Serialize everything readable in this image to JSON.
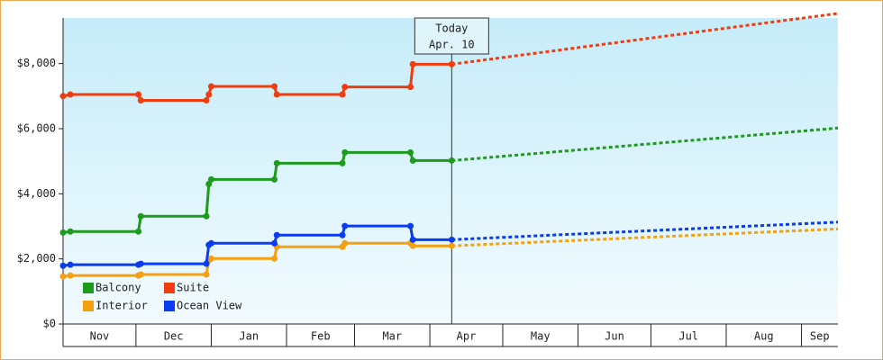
{
  "chart_data": {
    "type": "line",
    "annotation": {
      "x": 160,
      "lines": [
        "Today",
        "Apr. 10"
      ]
    },
    "x": [
      0,
      3,
      31,
      32,
      59,
      60,
      61,
      87,
      88,
      115,
      116,
      143,
      144,
      160
    ],
    "forecast_x": [
      160,
      319
    ],
    "series": [
      {
        "name": "Balcony",
        "color": "#1e9b1e",
        "values": [
          2810,
          2840,
          2840,
          3310,
          3310,
          4300,
          4440,
          4440,
          4940,
          4940,
          5270,
          5270,
          5020,
          5020
        ],
        "forecast": [
          5020,
          6020
        ]
      },
      {
        "name": "Suite",
        "color": "#f03c0f",
        "values": [
          7000,
          7050,
          7050,
          6870,
          6870,
          7050,
          7300,
          7300,
          7050,
          7050,
          7280,
          7280,
          7980,
          7980
        ],
        "forecast": [
          7980,
          9540
        ]
      },
      {
        "name": "Interior",
        "color": "#f5a00f",
        "values": [
          1460,
          1490,
          1490,
          1520,
          1520,
          1960,
          2010,
          2010,
          2370,
          2370,
          2480,
          2480,
          2400,
          2400
        ],
        "forecast": [
          2400,
          2920
        ]
      },
      {
        "name": "Ocean View",
        "color": "#0a3cf0",
        "values": [
          1790,
          1820,
          1820,
          1850,
          1850,
          2430,
          2480,
          2480,
          2730,
          2730,
          3010,
          3010,
          2590,
          2590
        ],
        "forecast": [
          2590,
          3130
        ]
      }
    ],
    "xlim": [
      0,
      319
    ],
    "xticks": [
      {
        "value": 0,
        "label": "Nov"
      },
      {
        "value": 30,
        "label": "Dec"
      },
      {
        "value": 61,
        "label": "Jan"
      },
      {
        "value": 92,
        "label": "Feb"
      },
      {
        "value": 120,
        "label": "Mar"
      },
      {
        "value": 151,
        "label": "Apr"
      },
      {
        "value": 181,
        "label": "May"
      },
      {
        "value": 212,
        "label": "Jun"
      },
      {
        "value": 242,
        "label": "Jul"
      },
      {
        "value": 273,
        "label": "Aug"
      },
      {
        "value": 304,
        "label": "Sep"
      }
    ],
    "ylim": [
      0,
      9400
    ],
    "yticks": [
      {
        "value": 0,
        "label": "$0"
      },
      {
        "value": 2000,
        "label": "$2,000"
      },
      {
        "value": 4000,
        "label": "$4,000"
      },
      {
        "value": 6000,
        "label": "$6,000"
      },
      {
        "value": 8000,
        "label": "$8,000"
      }
    ],
    "legend": "bottom-left"
  }
}
